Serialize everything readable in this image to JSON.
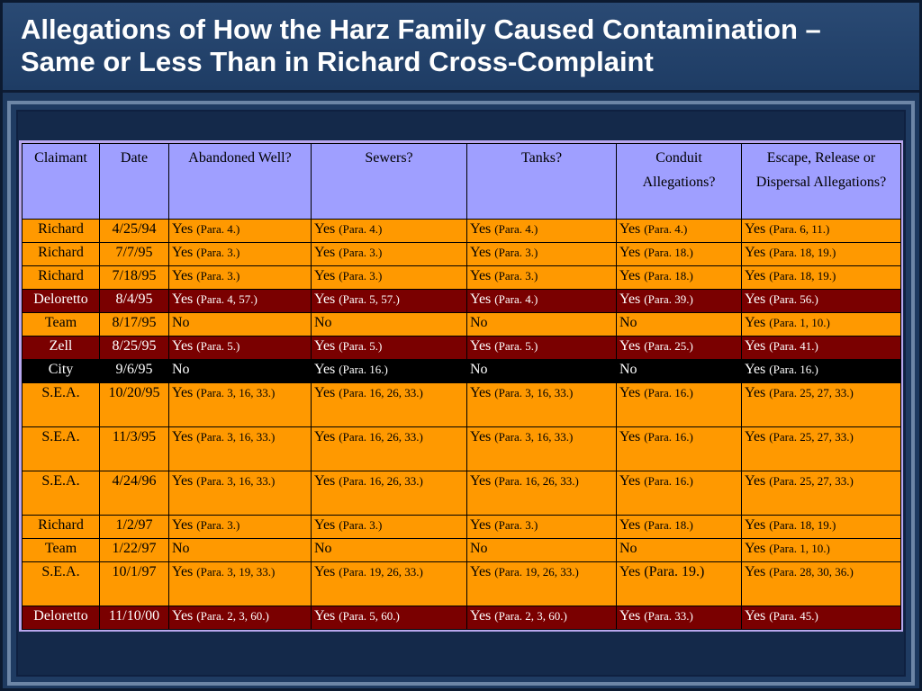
{
  "title_line1": "Allegations of How the Harz Family Caused Contamination –",
  "title_line2": "Same or Less Than in Richard Cross-Complaint",
  "headers": [
    "Claimant",
    "Date",
    "Abandoned  Well?",
    "Sewers?",
    "Tanks?",
    "Conduit Allegations?",
    "Escape, Release or Dispersal Allegations?"
  ],
  "colors": {
    "orange": "#ff9900",
    "maroon": "#7a0000",
    "black": "#000000",
    "header": "#9f9fff"
  },
  "rows": [
    {
      "claimant": "Richard",
      "date": "4/25/94",
      "cells": [
        [
          "Yes",
          "(Para. 4.)"
        ],
        [
          "Yes",
          "(Para. 4.)"
        ],
        [
          "Yes",
          "(Para. 4.)"
        ],
        [
          "Yes",
          "(Para. 4.)"
        ],
        [
          "Yes",
          "(Para. 6, 11.)"
        ]
      ]
    },
    {
      "claimant": "Richard",
      "date": "7/7/95",
      "cells": [
        [
          "Yes",
          "(Para. 3.)"
        ],
        [
          "Yes",
          "(Para. 3.)"
        ],
        [
          "Yes",
          "(Para. 3.)"
        ],
        [
          "Yes",
          "(Para. 18.)"
        ],
        [
          "Yes",
          "(Para. 18, 19.)"
        ]
      ]
    },
    {
      "claimant": "Richard",
      "date": "7/18/95",
      "cells": [
        [
          "Yes",
          "(Para. 3.)"
        ],
        [
          "Yes",
          "(Para. 3.)"
        ],
        [
          "Yes",
          "(Para. 3.)"
        ],
        [
          "Yes",
          "(Para. 18.)"
        ],
        [
          "Yes",
          "(Para. 18, 19.)"
        ]
      ]
    },
    {
      "claimant": "Deloretto",
      "date": "8/4/95",
      "cells": [
        [
          "Yes",
          "(Para. 4, 57.)"
        ],
        [
          "Yes",
          "(Para. 5, 57.)"
        ],
        [
          "Yes",
          "(Para. 4.)"
        ],
        [
          "Yes",
          "(Para. 39.)"
        ],
        [
          "Yes",
          "(Para. 56.)"
        ]
      ]
    },
    {
      "claimant": "Team",
      "date": "8/17/95",
      "cells": [
        [
          "No",
          ""
        ],
        [
          "No",
          ""
        ],
        [
          "No",
          ""
        ],
        [
          "No",
          ""
        ],
        [
          "Yes",
          "(Para. 1, 10.)"
        ]
      ]
    },
    {
      "claimant": "Zell",
      "date": "8/25/95",
      "cells": [
        [
          "Yes",
          "(Para. 5.)"
        ],
        [
          "Yes",
          "(Para. 5.)"
        ],
        [
          "Yes",
          "(Para. 5.)"
        ],
        [
          "Yes",
          "(Para. 25.)"
        ],
        [
          "Yes",
          "(Para. 41.)"
        ]
      ]
    },
    {
      "claimant": "City",
      "date": "9/6/95",
      "cells": [
        [
          "No",
          ""
        ],
        [
          "Yes",
          "(Para. 16.)"
        ],
        [
          "No",
          ""
        ],
        [
          "No",
          ""
        ],
        [
          "Yes",
          "(Para. 16.)"
        ]
      ]
    },
    {
      "claimant": "S.E.A.",
      "date": "10/20/95",
      "cells": [
        [
          "Yes",
          "(Para. 3, 16, 33.)"
        ],
        [
          "Yes",
          "(Para. 16, 26, 33.)"
        ],
        [
          "Yes",
          "(Para. 3, 16, 33.)"
        ],
        [
          "Yes",
          "(Para. 16.)"
        ],
        [
          "Yes",
          "(Para. 25, 27, 33.)"
        ]
      ]
    },
    {
      "claimant": "S.E.A.",
      "date": "11/3/95",
      "cells": [
        [
          "Yes",
          "(Para. 3, 16, 33.)"
        ],
        [
          "Yes",
          "(Para. 16, 26, 33.)"
        ],
        [
          "Yes",
          "(Para. 3, 16, 33.)"
        ],
        [
          "Yes",
          "(Para. 16.)"
        ],
        [
          "Yes",
          "(Para. 25, 27, 33.)"
        ]
      ]
    },
    {
      "claimant": "S.E.A.",
      "date": "4/24/96",
      "cells": [
        [
          "Yes",
          "(Para. 3, 16, 33.)"
        ],
        [
          "Yes",
          "(Para. 16, 26, 33.)"
        ],
        [
          "Yes",
          "(Para. 16, 26, 33.)"
        ],
        [
          "Yes",
          "(Para. 16.)"
        ],
        [
          "Yes",
          "(Para. 25, 27, 33.)"
        ]
      ]
    },
    {
      "claimant": "Richard",
      "date": "1/2/97",
      "cells": [
        [
          "Yes",
          "(Para. 3.)"
        ],
        [
          "Yes",
          "(Para. 3.)"
        ],
        [
          "Yes",
          "(Para. 3.)"
        ],
        [
          "Yes",
          "(Para. 18.)"
        ],
        [
          "Yes",
          "(Para. 18, 19.)"
        ]
      ]
    },
    {
      "claimant": "Team",
      "date": "1/22/97",
      "cells": [
        [
          "No",
          ""
        ],
        [
          "No",
          ""
        ],
        [
          "No",
          ""
        ],
        [
          "No",
          ""
        ],
        [
          "Yes",
          "(Para. 1, 10.)"
        ]
      ]
    },
    {
      "claimant": "S.E.A.",
      "date": "10/1/97",
      "cells": [
        [
          "Yes",
          "(Para. 3, 19, 33.)"
        ],
        [
          "Yes",
          "(Para. 19, 26, 33.)"
        ],
        [
          "Yes",
          "(Para. 19, 26, 33.)"
        ],
        [
          "Yes",
          "(Para. 19.)"
        ],
        [
          "Yes",
          "(Para. 28, 30, 36.)"
        ]
      ]
    },
    {
      "claimant": "Deloretto",
      "date": "11/10/00",
      "cells": [
        [
          "Yes",
          "(Para. 2, 3, 60.)"
        ],
        [
          "Yes",
          "(Para. 5, 60.)"
        ],
        [
          "Yes",
          "(Para. 2, 3, 60.)"
        ],
        [
          "Yes",
          "(Para. 33.)"
        ],
        [
          "Yes",
          "(Para. 45.)"
        ]
      ]
    }
  ]
}
